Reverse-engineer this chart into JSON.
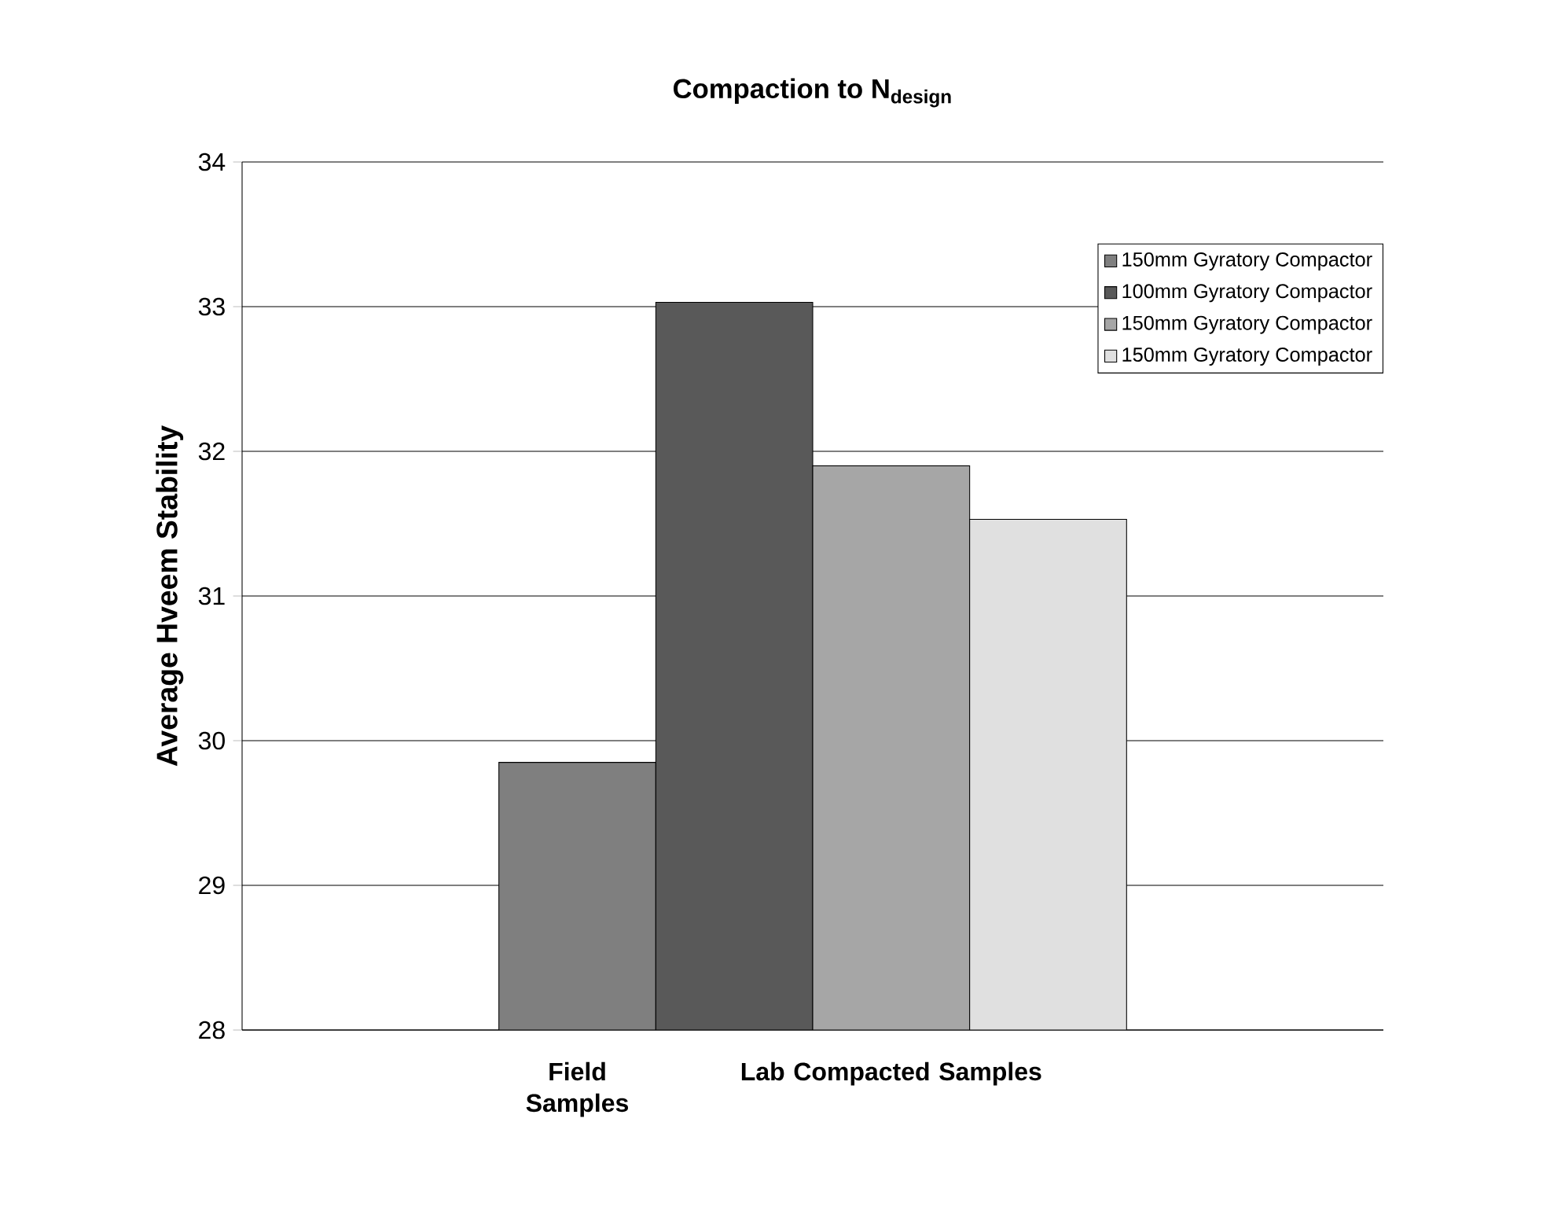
{
  "chart_data": {
    "type": "bar",
    "title": "Compaction to N$_{design}$",
    "ylabel": "Average Hveem Stability",
    "categories": [
      null
    ],
    "series": [
      {
        "name": "150mm Gyratory Compactor",
        "color": "#7f7f7f",
        "values": [
          29.85
        ]
      },
      {
        "name": "100mm Gyratory Compactor",
        "color": "#595959",
        "values": [
          33.03
        ]
      },
      {
        "name": "150mm Gyratory Compactor",
        "color": "#a6a6a6",
        "values": [
          31.9
        ]
      },
      {
        "name": "150mm Gyratory Compactor",
        "color": "#e0e0e0",
        "values": [
          31.53
        ]
      }
    ],
    "ylim": [
      28,
      34
    ],
    "yticks": [
      28,
      29,
      30,
      31,
      32,
      33,
      34
    ],
    "grid": "y",
    "legend": "top right",
    "annotations": [
      "Field Samples",
      "Lab Compacted Samples"
    ]
  }
}
